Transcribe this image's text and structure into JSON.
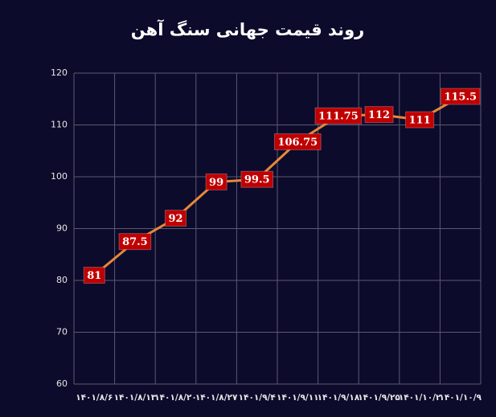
{
  "chart_data": {
    "type": "line",
    "title": "روند قیمت جهانی سنگ آهن",
    "categories": [
      "۱۴۰۱/۸/۶",
      "۱۴۰۱/۸/۱۳",
      "۱۴۰۱/۸/۲۰",
      "۱۴۰۱/۸/۲۷",
      "۱۴۰۱/۹/۴",
      "۱۴۰۱/۹/۱۱",
      "۱۴۰۱/۹/۱۸",
      "۱۴۰۱/۹/۲۵",
      "۱۴۰۱/۱۰/۲",
      "۱۴۰۱/۱۰/۹"
    ],
    "values": [
      81,
      87.5,
      92,
      99,
      99.5,
      106.75,
      111.75,
      112,
      111,
      115.5
    ],
    "color": "#e8883a",
    "label_color": "#c00000",
    "ylim": [
      60,
      120
    ],
    "yticks": [
      60,
      70,
      80,
      90,
      100,
      110,
      120
    ],
    "grid": true
  }
}
